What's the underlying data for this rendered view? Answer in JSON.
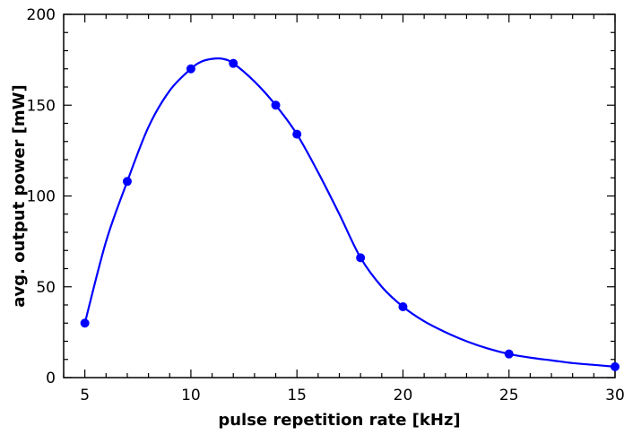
{
  "chart_data": {
    "type": "line",
    "xlabel": "pulse repetition rate [kHz]",
    "ylabel": "avg. output power [mW]",
    "xlim": [
      4,
      30
    ],
    "ylim": [
      0,
      200
    ],
    "x_ticks": [
      5,
      10,
      15,
      20,
      25,
      30
    ],
    "y_ticks": [
      0,
      50,
      100,
      150,
      200
    ],
    "grid": false,
    "legend": "none",
    "series": [
      {
        "color": "#0000ff",
        "marker": "circle",
        "points": [
          {
            "x": 5,
            "y": 30
          },
          {
            "x": 7,
            "y": 108
          },
          {
            "x": 10,
            "y": 170
          },
          {
            "x": 12,
            "y": 173
          },
          {
            "x": 14,
            "y": 150
          },
          {
            "x": 15,
            "y": 134
          },
          {
            "x": 18,
            "y": 66
          },
          {
            "x": 20,
            "y": 39
          },
          {
            "x": 25,
            "y": 13
          },
          {
            "x": 30,
            "y": 6
          }
        ],
        "fit_curve": [
          {
            "x": 5,
            "y": 30
          },
          {
            "x": 6,
            "y": 75
          },
          {
            "x": 7,
            "y": 108
          },
          {
            "x": 8,
            "y": 138
          },
          {
            "x": 9,
            "y": 158
          },
          {
            "x": 10,
            "y": 170
          },
          {
            "x": 10.5,
            "y": 174
          },
          {
            "x": 11,
            "y": 175.5
          },
          {
            "x": 11.5,
            "y": 175.5
          },
          {
            "x": 12,
            "y": 173
          },
          {
            "x": 13,
            "y": 163
          },
          {
            "x": 14,
            "y": 150
          },
          {
            "x": 15,
            "y": 134
          },
          {
            "x": 16,
            "y": 113
          },
          {
            "x": 17,
            "y": 90
          },
          {
            "x": 18,
            "y": 66
          },
          {
            "x": 19,
            "y": 50
          },
          {
            "x": 20,
            "y": 39
          },
          {
            "x": 21,
            "y": 31
          },
          {
            "x": 22,
            "y": 25
          },
          {
            "x": 23,
            "y": 20
          },
          {
            "x": 24,
            "y": 16
          },
          {
            "x": 25,
            "y": 13
          },
          {
            "x": 26,
            "y": 11
          },
          {
            "x": 27,
            "y": 9.5
          },
          {
            "x": 28,
            "y": 8
          },
          {
            "x": 29,
            "y": 7
          },
          {
            "x": 30,
            "y": 6
          }
        ]
      }
    ]
  }
}
